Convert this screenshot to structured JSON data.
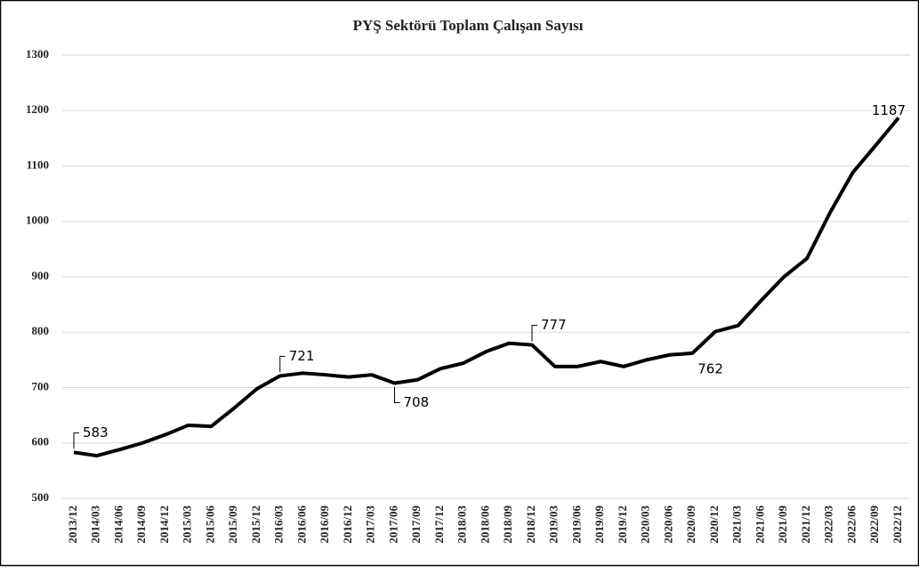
{
  "chart_data": {
    "type": "line",
    "title": "PYŞ Sektörü Toplam Çalışan Sayısı",
    "categories": [
      "2013/12",
      "2014/03",
      "2014/06",
      "2014/09",
      "2014/12",
      "2015/03",
      "2015/06",
      "2015/09",
      "2015/12",
      "2016/03",
      "2016/06",
      "2016/09",
      "2016/12",
      "2017/03",
      "2017/06",
      "2017/09",
      "2017/12",
      "2018/03",
      "2018/06",
      "2018/09",
      "2018/12",
      "2019/03",
      "2019/06",
      "2019/09",
      "2019/12",
      "2020/03",
      "2020/06",
      "2020/09",
      "2020/12",
      "2021/03",
      "2021/06",
      "2021/09",
      "2021/12",
      "2022/03",
      "2022/06",
      "2022/09",
      "2022/12"
    ],
    "series": [
      {
        "name": "Toplam Çalışan",
        "color": "#000000",
        "values": [
          583,
          577,
          588,
          600,
          615,
          632,
          630,
          663,
          698,
          721,
          726,
          723,
          719,
          723,
          708,
          714,
          734,
          744,
          765,
          780,
          777,
          738,
          738,
          747,
          738,
          750,
          759,
          762,
          801,
          812,
          857,
          900,
          933,
          1015,
          1088,
          1137,
          1187
        ],
        "value_labels": [
          "583",
          null,
          null,
          null,
          null,
          null,
          null,
          null,
          null,
          "721",
          null,
          null,
          null,
          null,
          "708",
          null,
          null,
          null,
          null,
          null,
          "777",
          null,
          null,
          null,
          null,
          null,
          null,
          "762",
          null,
          null,
          null,
          null,
          null,
          null,
          null,
          null,
          "1187"
        ]
      }
    ],
    "ylim": [
      500,
      1300
    ],
    "yticks": [
      500,
      600,
      700,
      800,
      900,
      1000,
      1100,
      1200,
      1300
    ],
    "grid": true
  }
}
